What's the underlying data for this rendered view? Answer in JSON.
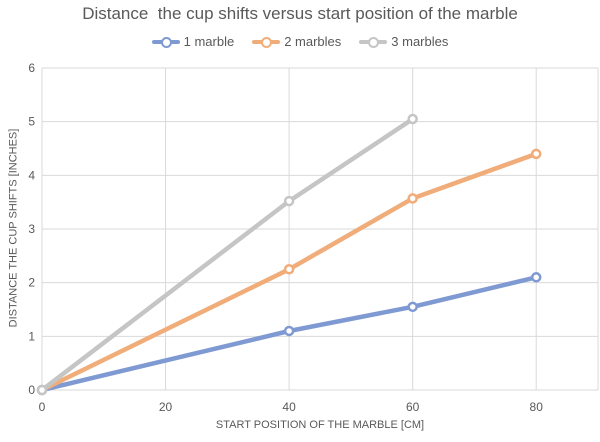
{
  "chart_data": {
    "type": "line",
    "title": "Distance  the cup shifts versus start position of the marble",
    "xlabel": "START POSITION OF THE MARBLE [CM]",
    "ylabel": "DISTANCE THE CUP SHIFTS [INCHES]",
    "xlim": [
      0,
      90
    ],
    "ylim": [
      0,
      6
    ],
    "x_ticks": [
      0,
      20,
      40,
      60,
      80
    ],
    "y_ticks": [
      0,
      1,
      2,
      3,
      4,
      5,
      6
    ],
    "grid": true,
    "legend_position": "top",
    "series": [
      {
        "name": "1 marble",
        "color": "#7f9ad2",
        "points": [
          [
            0,
            0
          ],
          [
            40,
            1.1
          ],
          [
            60,
            1.55
          ],
          [
            80,
            2.1
          ]
        ]
      },
      {
        "name": "2 marbles",
        "color": "#f0ad7a",
        "points": [
          [
            0,
            0
          ],
          [
            40,
            2.25
          ],
          [
            60,
            3.57
          ],
          [
            80,
            4.4
          ]
        ]
      },
      {
        "name": "3 marbles",
        "color": "#c5c5c5",
        "points": [
          [
            0,
            0
          ],
          [
            40,
            3.52
          ],
          [
            60,
            5.05
          ]
        ]
      }
    ]
  }
}
